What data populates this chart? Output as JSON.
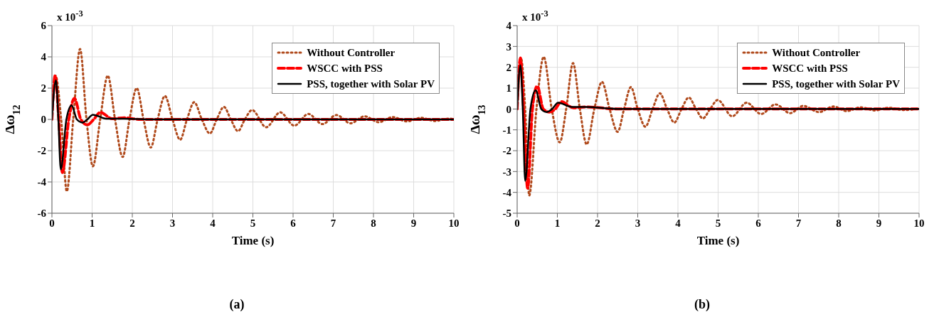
{
  "chart_data": [
    {
      "type": "line",
      "title": "(a)",
      "xlabel": "Time (s)",
      "ylabel": "Δω$_{12}$",
      "annotations": [
        "x 10$^{-3}$"
      ],
      "xlim": [
        0,
        10
      ],
      "xticks": [
        0,
        1,
        2,
        3,
        4,
        5,
        6,
        7,
        8,
        9,
        10
      ],
      "ylim": [
        -6,
        6
      ],
      "yticks": [
        -6,
        -4,
        -2,
        0,
        2,
        4,
        6
      ],
      "grid": true,
      "legend": "top right",
      "marker": "none",
      "series": [
        {
          "name": "Without Controller",
          "color": "#b04a1c",
          "line_style": "dotted",
          "x": [
            0,
            0.09,
            0.23,
            0.37,
            0.53,
            0.7,
            0.86,
            1.02,
            1.2,
            1.39,
            1.57,
            1.76,
            1.93,
            2.11,
            2.28,
            2.46,
            2.63,
            2.81,
            3.0,
            3.19,
            3.36,
            3.54,
            3.73,
            3.93,
            4.1,
            4.28,
            4.45,
            4.63,
            4.8,
            4.98,
            5.33,
            5.68,
            6.03,
            6.38,
            6.73,
            7.08,
            7.43,
            7.78,
            8.13,
            8.48,
            8.83,
            9.18,
            9.53,
            9.88,
            10
          ],
          "values": [
            0,
            2.8,
            0,
            -4.6,
            0,
            4.5,
            0,
            -3.0,
            0,
            2.8,
            0,
            -2.4,
            0,
            2.0,
            0,
            -1.8,
            0,
            1.5,
            0,
            -1.3,
            0,
            1.1,
            0,
            -0.9,
            0,
            0.8,
            0,
            -0.75,
            0,
            0.6,
            -0.5,
            0.45,
            -0.4,
            0.35,
            -0.3,
            0.28,
            -0.25,
            0.2,
            -0.18,
            0.15,
            -0.13,
            0.1,
            -0.1,
            0.05,
            0
          ]
        },
        {
          "name": "WSCC with PSS",
          "color": "#ff0000",
          "line_style": "dashed",
          "x": [
            0,
            0.08,
            0.17,
            0.26,
            0.42,
            0.56,
            0.72,
            0.88,
            1.04,
            1.2,
            1.5,
            1.8,
            2.2,
            10
          ],
          "values": [
            0,
            2.8,
            0,
            -3.4,
            0,
            1.35,
            0,
            -0.35,
            0,
            0.45,
            0.05,
            0.1,
            0,
            0
          ]
        },
        {
          "name": "PSS, together with Solar PV",
          "color": "#000000",
          "line_style": "solid",
          "x": [
            0,
            0.1,
            0.16,
            0.22,
            0.36,
            0.49,
            0.62,
            0.76,
            0.88,
            1.02,
            1.35,
            1.8,
            2.5,
            10
          ],
          "values": [
            0,
            2.5,
            0,
            -3.2,
            0,
            0.9,
            0,
            -0.2,
            0,
            0.3,
            0.05,
            0.05,
            0,
            0
          ]
        }
      ]
    },
    {
      "type": "line",
      "title": "(b)",
      "xlabel": "Time (s)",
      "ylabel": "Δω$_{13}$",
      "annotations": [
        "x 10$^{-3}$"
      ],
      "xlim": [
        0,
        10
      ],
      "xticks": [
        0,
        1,
        2,
        3,
        4,
        5,
        6,
        7,
        8,
        9,
        10
      ],
      "ylim": [
        -5,
        4
      ],
      "yticks": [
        -5,
        -4,
        -3,
        -2,
        -1,
        0,
        1,
        2,
        3,
        4
      ],
      "grid": true,
      "legend": "top right",
      "marker": "none",
      "series": [
        {
          "name": "Without Controller",
          "color": "#b04a1c",
          "line_style": "dotted",
          "x": [
            0,
            0.1,
            0.2,
            0.3,
            0.48,
            0.66,
            0.86,
            1.06,
            1.22,
            1.39,
            1.56,
            1.73,
            1.92,
            2.11,
            2.3,
            2.5,
            2.66,
            2.83,
            3.0,
            3.19,
            3.37,
            3.55,
            3.73,
            3.91,
            4.09,
            4.27,
            4.45,
            4.62,
            4.8,
            4.99,
            5.35,
            5.71,
            6.07,
            6.43,
            6.79,
            7.12,
            7.51,
            7.87,
            8.2,
            8.55,
            8.9,
            9.25,
            9.6,
            10
          ],
          "values": [
            0,
            2.4,
            0,
            -4.15,
            0,
            2.5,
            0,
            -1.6,
            0,
            2.2,
            0,
            -1.7,
            0,
            1.3,
            0,
            -1.1,
            0,
            1.05,
            0,
            -0.85,
            0,
            0.75,
            0,
            -0.65,
            0,
            0.55,
            0,
            -0.45,
            0,
            0.43,
            -0.35,
            0.3,
            -0.24,
            0.22,
            -0.2,
            0.15,
            -0.15,
            0.12,
            -0.1,
            0.08,
            -0.07,
            0.06,
            -0.05,
            0.02
          ]
        },
        {
          "name": "WSCC with PSS",
          "color": "#ff0000",
          "line_style": "dashed",
          "x": [
            0,
            0.08,
            0.16,
            0.26,
            0.38,
            0.5,
            0.65,
            0.8,
            0.95,
            1.1,
            1.4,
            1.7,
            2.5,
            10
          ],
          "values": [
            0,
            2.45,
            0,
            -3.8,
            0,
            1.1,
            0,
            -0.15,
            0,
            0.35,
            0.05,
            0.1,
            0,
            0
          ]
        },
        {
          "name": "PSS, together with Solar PV",
          "color": "#000000",
          "line_style": "solid",
          "x": [
            0,
            0.08,
            0.14,
            0.2,
            0.33,
            0.46,
            0.6,
            0.73,
            0.87,
            1.02,
            1.35,
            1.7,
            2.5,
            10
          ],
          "values": [
            0,
            2.1,
            0,
            -3.45,
            0,
            0.9,
            0,
            -0.15,
            0,
            0.3,
            0.1,
            0.1,
            0,
            0
          ]
        }
      ]
    }
  ]
}
